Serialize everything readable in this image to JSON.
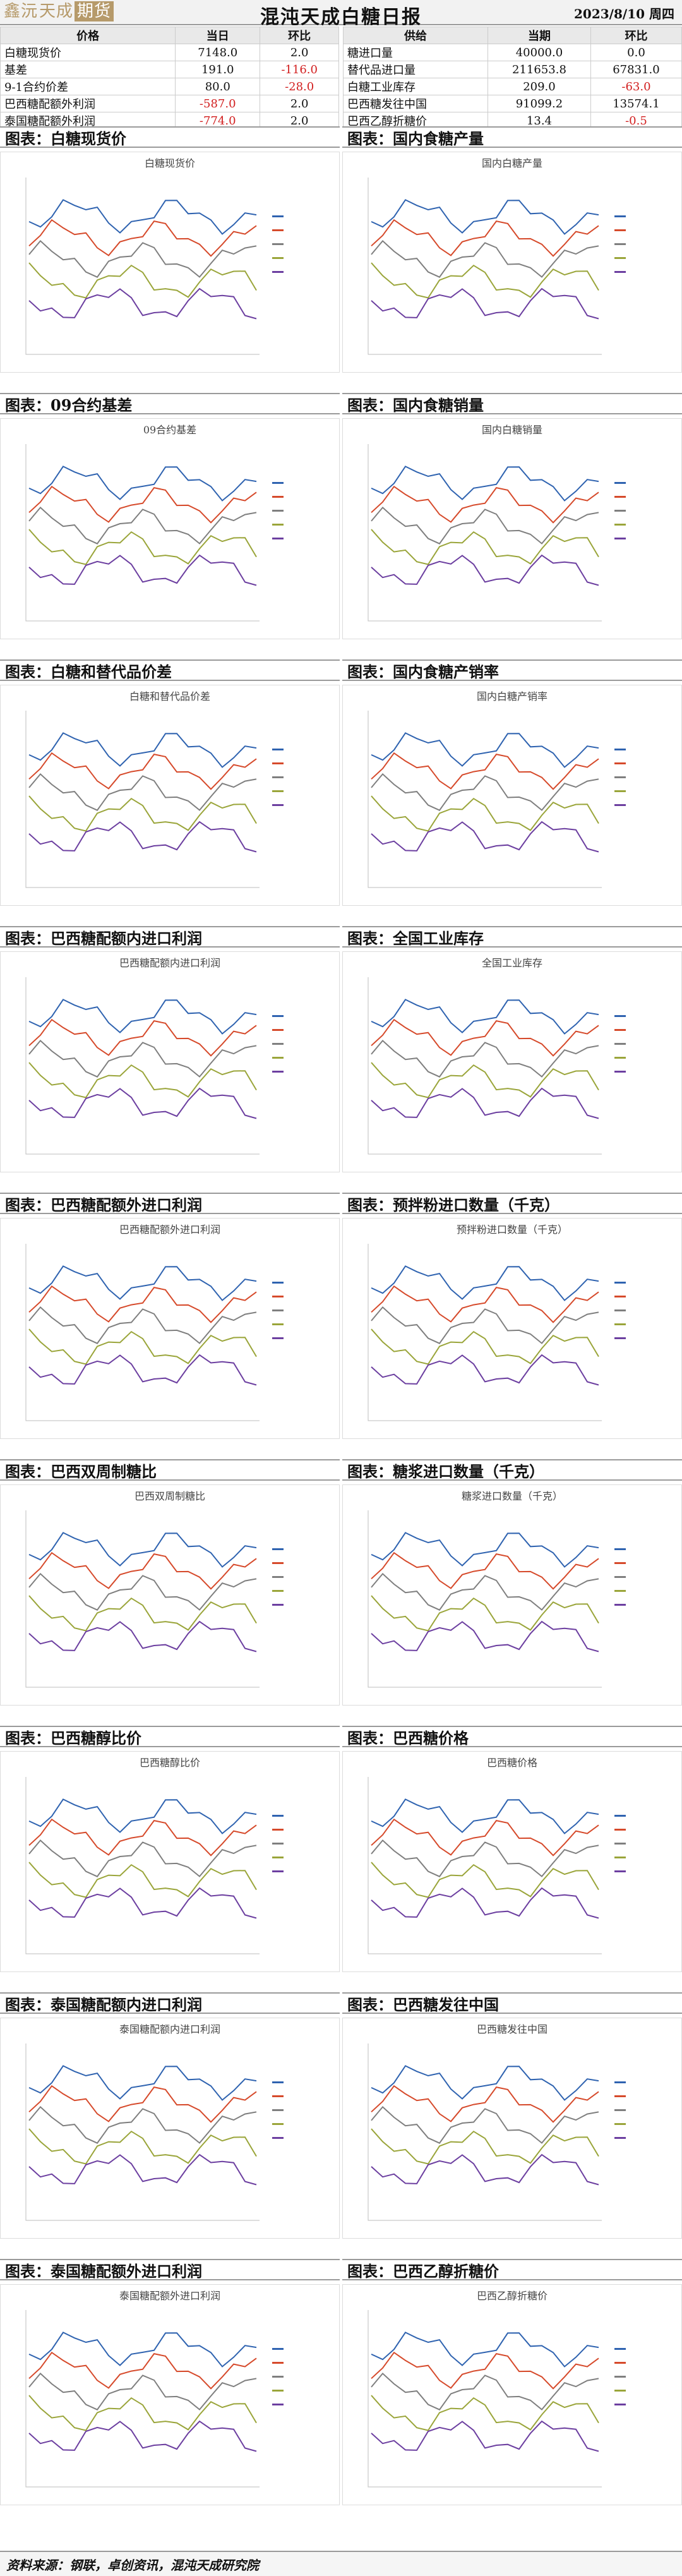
{
  "header": {
    "logo_left": "鑫沅",
    "logo_mid": "天成",
    "logo_box": "期货",
    "title": "混沌天成白糖日报",
    "date": "2023/8/10 周四"
  },
  "left_table": {
    "columns": [
      "价格",
      "当日",
      "环比"
    ],
    "rows": [
      {
        "label": "白糖现货价",
        "value": "7148.0",
        "change": "2.0",
        "neg": false
      },
      {
        "label": "基差",
        "value": "191.0",
        "change": "-116.0",
        "neg": true
      },
      {
        "label": "9-1合约价差",
        "value": "80.0",
        "change": "-28.0",
        "neg": true
      },
      {
        "label": "巴西糖配额外利润",
        "value": "-587.0",
        "change": "2.0",
        "neg": false
      },
      {
        "label": "泰国糖配额外利润",
        "value": "-774.0",
        "change": "2.0",
        "neg": false
      }
    ]
  },
  "right_table": {
    "columns": [
      "供给",
      "当期",
      "环比"
    ],
    "rows": [
      {
        "label": "糖进口量",
        "value": "40000.0",
        "change": "0.0",
        "neg": false
      },
      {
        "label": "替代品进口量",
        "value": "211653.8",
        "change": "67831.0",
        "neg": false
      },
      {
        "label": "白糖工业库存",
        "value": "209.0",
        "change": "-63.0",
        "neg": true
      },
      {
        "label": "巴西糖发往中国",
        "value": "91099.2",
        "change": "13574.1",
        "neg": false
      },
      {
        "label": "巴西乙醇折糖价",
        "value": "13.4",
        "change": "-0.5",
        "neg": true
      }
    ]
  },
  "sections": [
    {
      "label": "图表：白糖现货价",
      "chart_title": "白糖现货价"
    },
    {
      "label": "图表：国内食糖产量",
      "chart_title": "国内白糖产量"
    },
    {
      "label": "图表：09合约基差",
      "chart_title": "09合约基差"
    },
    {
      "label": "图表：国内食糖销量",
      "chart_title": "国内白糖销量"
    },
    {
      "label": "图表：白糖和替代品价差",
      "chart_title": "白糖和替代品价差"
    },
    {
      "label": "图表：国内食糖产销率",
      "chart_title": "国内白糖产销率"
    },
    {
      "label": "图表：巴西糖配额内进口利润",
      "chart_title": "巴西糖配额内进口利润"
    },
    {
      "label": "图表：全国工业库存",
      "chart_title": "全国工业库存"
    },
    {
      "label": "图表：巴西糖配额外进口利润",
      "chart_title": "巴西糖配额外进口利润"
    },
    {
      "label": "图表：预拌粉进口数量（千克）",
      "chart_title": "预拌粉进口数量（千克）"
    },
    {
      "label": "图表：巴西双周制糖比",
      "chart_title": "巴西双周制糖比"
    },
    {
      "label": "图表：糖浆进口数量（千克）",
      "chart_title": "糖浆进口数量（千克）"
    },
    {
      "label": "图表：巴西糖醇比价",
      "chart_title": "巴西糖醇比价"
    },
    {
      "label": "图表：巴西糖价格",
      "chart_title": "巴西糖价格"
    },
    {
      "label": "图表：泰国糖配额内进口利润",
      "chart_title": "泰国糖配额内进口利润"
    },
    {
      "label": "图表：巴西糖发往中国",
      "chart_title": "巴西糖发往中国"
    },
    {
      "label": "图表：泰国糖配额外进口利润",
      "chart_title": "泰国糖配额外进口利润"
    },
    {
      "label": "图表：巴西乙醇折糖价",
      "chart_title": "巴西乙醇折糖价"
    }
  ],
  "footer": {
    "source": "资料来源：钢联，卓创资讯，混沌天成研究院"
  },
  "colors": {
    "series": [
      "#2f63b0",
      "#d64a2b",
      "#7f7f7f",
      "#9aa53a",
      "#6c3fa0",
      "#26a5b8",
      "#000000"
    ]
  }
}
